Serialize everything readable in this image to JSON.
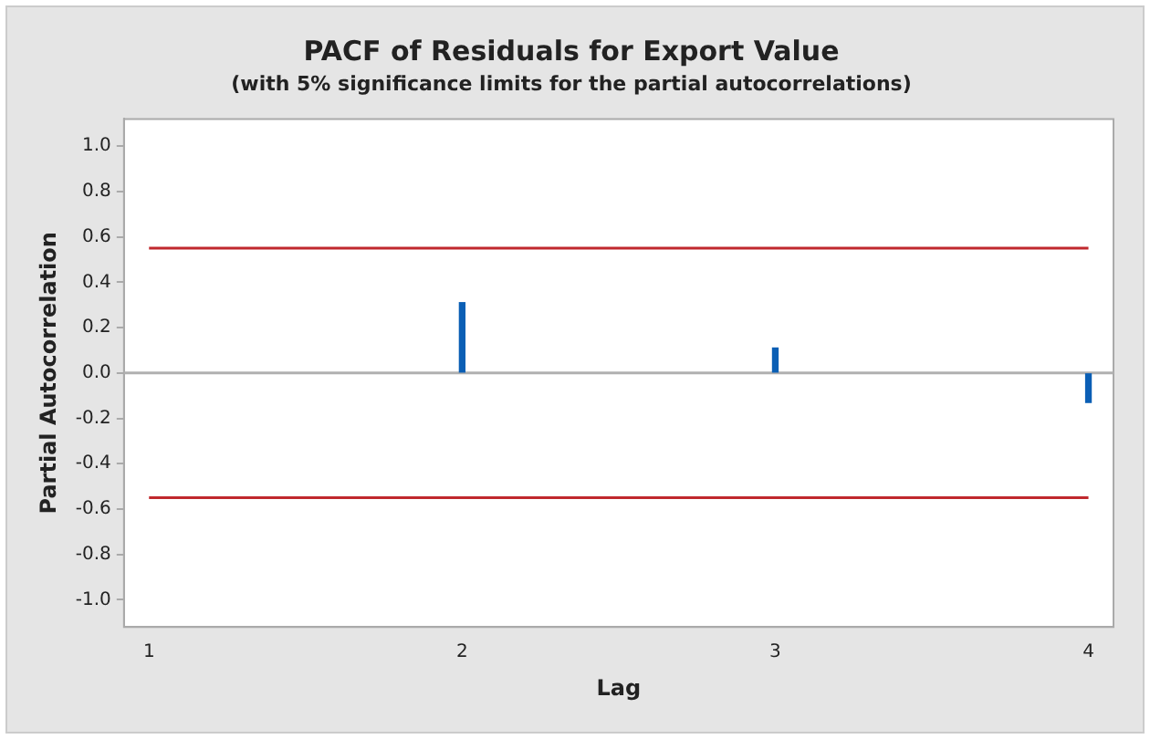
{
  "chart_data": {
    "type": "bar",
    "title": "PACF of Residuals for Export Value",
    "subtitle": "(with 5% significance limits for the partial autocorrelations)",
    "xlabel": "Lag",
    "ylabel": "Partial Autocorrelation",
    "x": [
      2,
      3,
      4
    ],
    "values": [
      0.31,
      0.11,
      -0.13
    ],
    "color": "#0b5fb5",
    "xlim": [
      0.92,
      4.08
    ],
    "xticks": [
      1,
      2,
      3,
      4
    ],
    "ylim": [
      -1.12,
      1.12
    ],
    "yticks": [
      {
        "value": -1,
        "label": "-1.0"
      },
      {
        "value": -0.8,
        "label": "-0.8"
      },
      {
        "value": -0.6,
        "label": "-0.6"
      },
      {
        "value": -0.4,
        "label": "-0.4"
      },
      {
        "value": -0.2,
        "label": "-0.2"
      },
      {
        "value": 0,
        "label": "0.0"
      },
      {
        "value": 0.2,
        "label": "0.2"
      },
      {
        "value": 0.4,
        "label": "0.4"
      },
      {
        "value": 0.6,
        "label": "0.6"
      },
      {
        "value": 0.8,
        "label": "0.8"
      },
      {
        "value": 1,
        "label": "1.0"
      }
    ],
    "ref_lines": [
      {
        "axis": "y",
        "value": 0.55,
        "color": "#c0282d"
      },
      {
        "axis": "y",
        "value": -0.55,
        "color": "#c0282d"
      },
      {
        "axis": "y",
        "value": 0,
        "color": "#b0b0b0"
      }
    ],
    "grid": false,
    "legend": false
  }
}
